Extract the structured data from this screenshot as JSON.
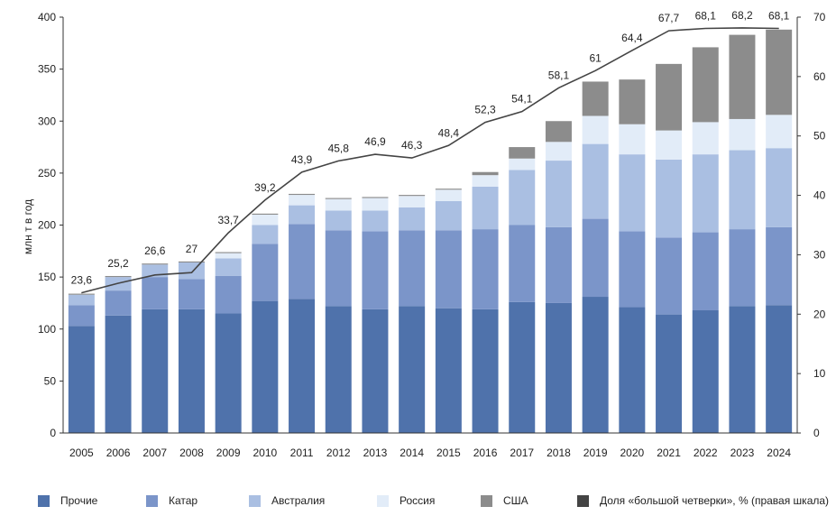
{
  "chart_data": {
    "type": "bar",
    "stacked": true,
    "categories": [
      "2005",
      "2006",
      "2007",
      "2008",
      "2009",
      "2010",
      "2011",
      "2012",
      "2013",
      "2014",
      "2015",
      "2016",
      "2017",
      "2018",
      "2019",
      "2020",
      "2021",
      "2022",
      "2023",
      "2024"
    ],
    "ylabel": "млн т в год",
    "ylim": [
      0,
      400
    ],
    "y_ticks": [
      0,
      50,
      100,
      150,
      200,
      250,
      300,
      350,
      400
    ],
    "y2lim": [
      0,
      70
    ],
    "y2_ticks": [
      0,
      10,
      20,
      30,
      40,
      50,
      60,
      70
    ],
    "grid": false,
    "legend_position": "bottom",
    "series": [
      {
        "name": "Прочие",
        "color": "#4f72ab",
        "values": [
          103,
          113,
          119,
          119,
          115,
          127,
          129,
          122,
          119,
          122,
          120,
          119,
          126,
          125,
          131,
          121,
          114,
          118,
          122,
          123
        ]
      },
      {
        "name": "Катар",
        "color": "#7b95c9",
        "values": [
          20,
          24,
          31,
          29,
          36,
          55,
          72,
          73,
          75,
          73,
          75,
          77,
          74,
          73,
          75,
          73,
          74,
          75,
          74,
          75
        ]
      },
      {
        "name": "Австралия",
        "color": "#aabfe2",
        "values": [
          10,
          13,
          12,
          16,
          17,
          18,
          18,
          19,
          20,
          22,
          28,
          41,
          53,
          64,
          72,
          74,
          75,
          75,
          76,
          76
        ]
      },
      {
        "name": "Россия",
        "color": "#e2ecf8",
        "values": [
          0,
          0,
          0,
          0,
          5,
          10,
          10,
          11,
          12,
          11,
          11,
          11,
          11,
          18,
          27,
          29,
          28,
          31,
          30,
          32
        ]
      },
      {
        "name": "США",
        "color": "#8c8c8c",
        "values": [
          1,
          1,
          1,
          1,
          1,
          1,
          1,
          1,
          1,
          1,
          1,
          3,
          11,
          20,
          33,
          43,
          64,
          72,
          81,
          82
        ]
      }
    ],
    "line": {
      "name": "Доля «большой четверки», % (правая шкала)",
      "color": "#444444",
      "axis": "right",
      "values": [
        23.6,
        25.2,
        26.6,
        27,
        33.7,
        39.2,
        43.9,
        45.8,
        46.9,
        46.3,
        48.4,
        52.3,
        54.1,
        58.1,
        61,
        64.4,
        67.7,
        68.1,
        68.2,
        68.1
      ],
      "labels": [
        "23,6",
        "25,2",
        "26,6",
        "27",
        "33,7",
        "39,2",
        "43,9",
        "45,8",
        "46,9",
        "46,3",
        "48,4",
        "52,3",
        "54,1",
        "58,1",
        "61",
        "64,4",
        "67,7",
        "68,1",
        "68,2",
        "68,1"
      ]
    }
  }
}
